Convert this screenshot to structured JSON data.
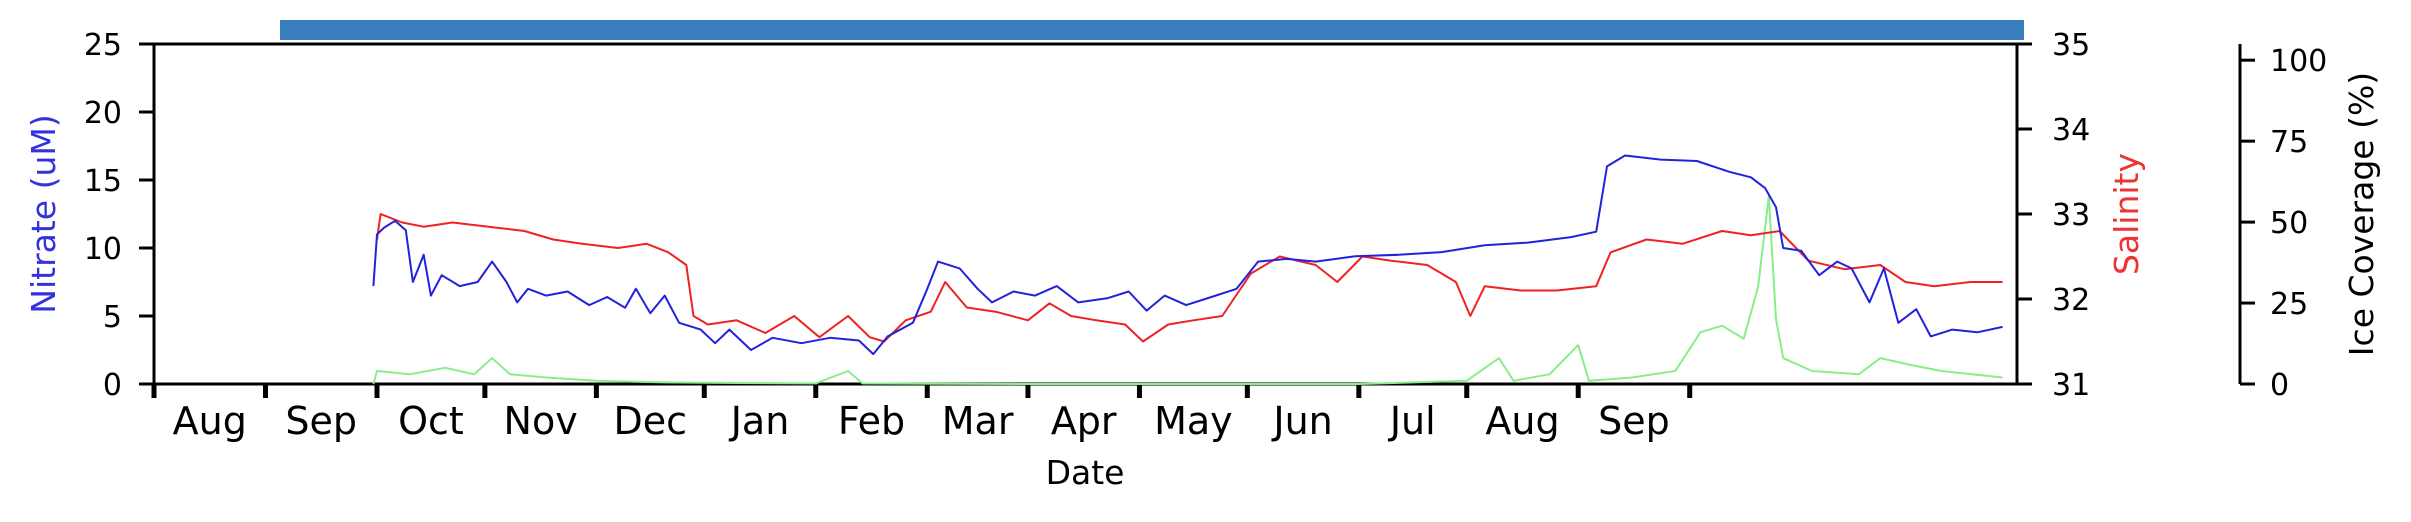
{
  "chart_data": {
    "type": "line",
    "title": "",
    "xlabel": "Date",
    "x_tick_labels": [
      "Aug",
      "Sep",
      "Oct",
      "Nov",
      "Dec",
      "Jan",
      "Feb",
      "Mar",
      "Apr",
      "May",
      "Jun",
      "Jul",
      "Aug",
      "Sep"
    ],
    "axes": {
      "left": {
        "label": "Nitrate (uM)",
        "color": "#3333dd",
        "ylim": [
          0,
          25
        ],
        "ticks": [
          "0",
          "5",
          "10",
          "15",
          "20",
          "25"
        ]
      },
      "right": {
        "label": "Salinity",
        "color": "#ee3333",
        "ylim": [
          31,
          35
        ],
        "ticks": [
          "31",
          "32",
          "33",
          "34",
          "35"
        ]
      },
      "far_right": {
        "label": "Ice Coverage (%)",
        "color": "#000000",
        "ylim": [
          0,
          105
        ],
        "ticks": [
          "0",
          "25",
          "50",
          "75",
          "100"
        ]
      }
    },
    "top_bar_color": "#3a7ebf",
    "series": [
      {
        "axis": "left",
        "color": "#2222dd",
        "points": [
          [
            "2021-08-31",
            7.2
          ],
          [
            "2021-09-01",
            11
          ],
          [
            "2021-09-03",
            11.5
          ],
          [
            "2021-09-06",
            12
          ],
          [
            "2021-09-09",
            11.3
          ],
          [
            "2021-09-11",
            7.5
          ],
          [
            "2021-09-14",
            9.5
          ],
          [
            "2021-09-16",
            6.5
          ],
          [
            "2021-09-19",
            8
          ],
          [
            "2021-09-24",
            7.2
          ],
          [
            "2021-09-29",
            7.5
          ],
          [
            "2021-10-03",
            9
          ],
          [
            "2021-10-07",
            7.5
          ],
          [
            "2021-10-10",
            6
          ],
          [
            "2021-10-13",
            7
          ],
          [
            "2021-10-18",
            6.5
          ],
          [
            "2021-10-24",
            6.8
          ],
          [
            "2021-10-30",
            5.8
          ],
          [
            "2021-11-04",
            6.4
          ],
          [
            "2021-11-09",
            5.6
          ],
          [
            "2021-11-12",
            7
          ],
          [
            "2021-11-16",
            5.2
          ],
          [
            "2021-11-20",
            6.5
          ],
          [
            "2021-11-24",
            4.5
          ],
          [
            "2021-11-30",
            4
          ],
          [
            "2021-12-04",
            3
          ],
          [
            "2021-12-08",
            4
          ],
          [
            "2021-12-14",
            2.5
          ],
          [
            "2021-12-20",
            3.4
          ],
          [
            "2021-12-28",
            3
          ],
          [
            "2022-01-05",
            3.4
          ],
          [
            "2022-01-13",
            3.2
          ],
          [
            "2022-01-17",
            2.2
          ],
          [
            "2022-01-21",
            3.5
          ],
          [
            "2022-01-28",
            4.5
          ],
          [
            "2022-02-01",
            7
          ],
          [
            "2022-02-04",
            9
          ],
          [
            "2022-02-10",
            8.5
          ],
          [
            "2022-02-15",
            7
          ],
          [
            "2022-02-19",
            6
          ],
          [
            "2022-02-25",
            6.8
          ],
          [
            "2022-03-03",
            6.5
          ],
          [
            "2022-03-09",
            7.2
          ],
          [
            "2022-03-15",
            6
          ],
          [
            "2022-03-23",
            6.3
          ],
          [
            "2022-03-29",
            6.8
          ],
          [
            "2022-04-03",
            5.4
          ],
          [
            "2022-04-08",
            6.5
          ],
          [
            "2022-04-14",
            5.8
          ],
          [
            "2022-04-21",
            6.4
          ],
          [
            "2022-04-28",
            7
          ],
          [
            "2022-05-04",
            9
          ],
          [
            "2022-05-12",
            9.2
          ],
          [
            "2022-05-20",
            9
          ],
          [
            "2022-05-31",
            9.4
          ],
          [
            "2022-06-12",
            9.5
          ],
          [
            "2022-06-24",
            9.7
          ],
          [
            "2022-07-06",
            10.2
          ],
          [
            "2022-07-18",
            10.4
          ],
          [
            "2022-07-30",
            10.8
          ],
          [
            "2022-08-06",
            11.2
          ],
          [
            "2022-08-09",
            16
          ],
          [
            "2022-08-14",
            16.8
          ],
          [
            "2022-08-24",
            16.5
          ],
          [
            "2022-09-03",
            16.4
          ],
          [
            "2022-09-12",
            15.6
          ],
          [
            "2022-09-18",
            15.2
          ],
          [
            "2022-09-22",
            14.4
          ],
          [
            "2022-09-25",
            13
          ],
          [
            "2022-09-27",
            10
          ],
          [
            "2022-10-02",
            9.8
          ],
          [
            "2022-10-07",
            8
          ],
          [
            "2022-10-12",
            9
          ],
          [
            "2022-10-16",
            8.5
          ],
          [
            "2022-10-21",
            6
          ],
          [
            "2022-10-25",
            8.5
          ],
          [
            "2022-10-29",
            4.5
          ],
          [
            "2022-11-03",
            5.5
          ],
          [
            "2022-11-07",
            3.5
          ],
          [
            "2022-11-13",
            4
          ],
          [
            "2022-11-20",
            3.8
          ],
          [
            "2022-11-27",
            4.2
          ]
        ]
      },
      {
        "axis": "right",
        "color": "#ee2222",
        "points": [
          [
            "2021-09-01",
            32.7
          ],
          [
            "2021-09-02",
            33
          ],
          [
            "2021-09-08",
            32.9
          ],
          [
            "2021-09-14",
            32.85
          ],
          [
            "2021-09-22",
            32.9
          ],
          [
            "2021-10-02",
            32.85
          ],
          [
            "2021-10-12",
            32.8
          ],
          [
            "2021-10-20",
            32.7
          ],
          [
            "2021-10-28",
            32.65
          ],
          [
            "2021-11-07",
            32.6
          ],
          [
            "2021-11-15",
            32.65
          ],
          [
            "2021-11-21",
            32.55
          ],
          [
            "2021-11-26",
            32.4
          ],
          [
            "2021-11-28",
            31.8
          ],
          [
            "2021-12-02",
            31.7
          ],
          [
            "2021-12-10",
            31.75
          ],
          [
            "2021-12-18",
            31.6
          ],
          [
            "2021-12-26",
            31.8
          ],
          [
            "2022-01-02",
            31.55
          ],
          [
            "2022-01-10",
            31.8
          ],
          [
            "2022-01-16",
            31.55
          ],
          [
            "2022-01-20",
            31.5
          ],
          [
            "2022-01-26",
            31.75
          ],
          [
            "2022-02-02",
            31.85
          ],
          [
            "2022-02-06",
            32.2
          ],
          [
            "2022-02-12",
            31.9
          ],
          [
            "2022-02-20",
            31.85
          ],
          [
            "2022-03-01",
            31.75
          ],
          [
            "2022-03-07",
            31.95
          ],
          [
            "2022-03-13",
            31.8
          ],
          [
            "2022-03-20",
            31.75
          ],
          [
            "2022-03-28",
            31.7
          ],
          [
            "2022-04-02",
            31.5
          ],
          [
            "2022-04-09",
            31.7
          ],
          [
            "2022-04-16",
            31.75
          ],
          [
            "2022-04-24",
            31.8
          ],
          [
            "2022-05-02",
            32.3
          ],
          [
            "2022-05-10",
            32.5
          ],
          [
            "2022-05-20",
            32.4
          ],
          [
            "2022-05-26",
            32.2
          ],
          [
            "2022-06-02",
            32.5
          ],
          [
            "2022-06-10",
            32.45
          ],
          [
            "2022-06-20",
            32.4
          ],
          [
            "2022-06-28",
            32.2
          ],
          [
            "2022-07-02",
            31.8
          ],
          [
            "2022-07-06",
            32.15
          ],
          [
            "2022-07-16",
            32.1
          ],
          [
            "2022-07-26",
            32.1
          ],
          [
            "2022-08-06",
            32.15
          ],
          [
            "2022-08-10",
            32.55
          ],
          [
            "2022-08-20",
            32.7
          ],
          [
            "2022-08-30",
            32.65
          ],
          [
            "2022-09-10",
            32.8
          ],
          [
            "2022-09-18",
            32.75
          ],
          [
            "2022-09-26",
            32.8
          ],
          [
            "2022-10-04",
            32.45
          ],
          [
            "2022-10-14",
            32.35
          ],
          [
            "2022-10-24",
            32.4
          ],
          [
            "2022-10-31",
            32.2
          ],
          [
            "2022-11-08",
            32.15
          ],
          [
            "2022-11-18",
            32.2
          ],
          [
            "2022-11-27",
            32.2
          ]
        ]
      },
      {
        "axis": "far_right",
        "color": "#88ee88",
        "points": [
          [
            "2021-08-31",
            0
          ],
          [
            "2021-09-01",
            4
          ],
          [
            "2021-09-10",
            3
          ],
          [
            "2021-09-20",
            5
          ],
          [
            "2021-09-28",
            3
          ],
          [
            "2021-10-03",
            8
          ],
          [
            "2021-10-08",
            3
          ],
          [
            "2021-10-18",
            2
          ],
          [
            "2021-11-01",
            1
          ],
          [
            "2021-11-20",
            0.5
          ],
          [
            "2021-12-10",
            0.3
          ],
          [
            "2022-01-01",
            0.2
          ],
          [
            "2022-01-10",
            4
          ],
          [
            "2022-01-14",
            0.2
          ],
          [
            "2022-03-01",
            0
          ],
          [
            "2022-06-01",
            0
          ],
          [
            "2022-07-01",
            1
          ],
          [
            "2022-07-10",
            8
          ],
          [
            "2022-07-14",
            1
          ],
          [
            "2022-07-24",
            3
          ],
          [
            "2022-08-01",
            12
          ],
          [
            "2022-08-04",
            1
          ],
          [
            "2022-08-16",
            2
          ],
          [
            "2022-08-28",
            4
          ],
          [
            "2022-09-04",
            16
          ],
          [
            "2022-09-10",
            18
          ],
          [
            "2022-09-16",
            14
          ],
          [
            "2022-09-20",
            30
          ],
          [
            "2022-09-23",
            58
          ],
          [
            "2022-09-25",
            20
          ],
          [
            "2022-09-27",
            8
          ],
          [
            "2022-10-05",
            4
          ],
          [
            "2022-10-18",
            3
          ],
          [
            "2022-10-24",
            8
          ],
          [
            "2022-11-01",
            6
          ],
          [
            "2022-11-10",
            4
          ],
          [
            "2022-11-27",
            2
          ]
        ]
      }
    ]
  }
}
